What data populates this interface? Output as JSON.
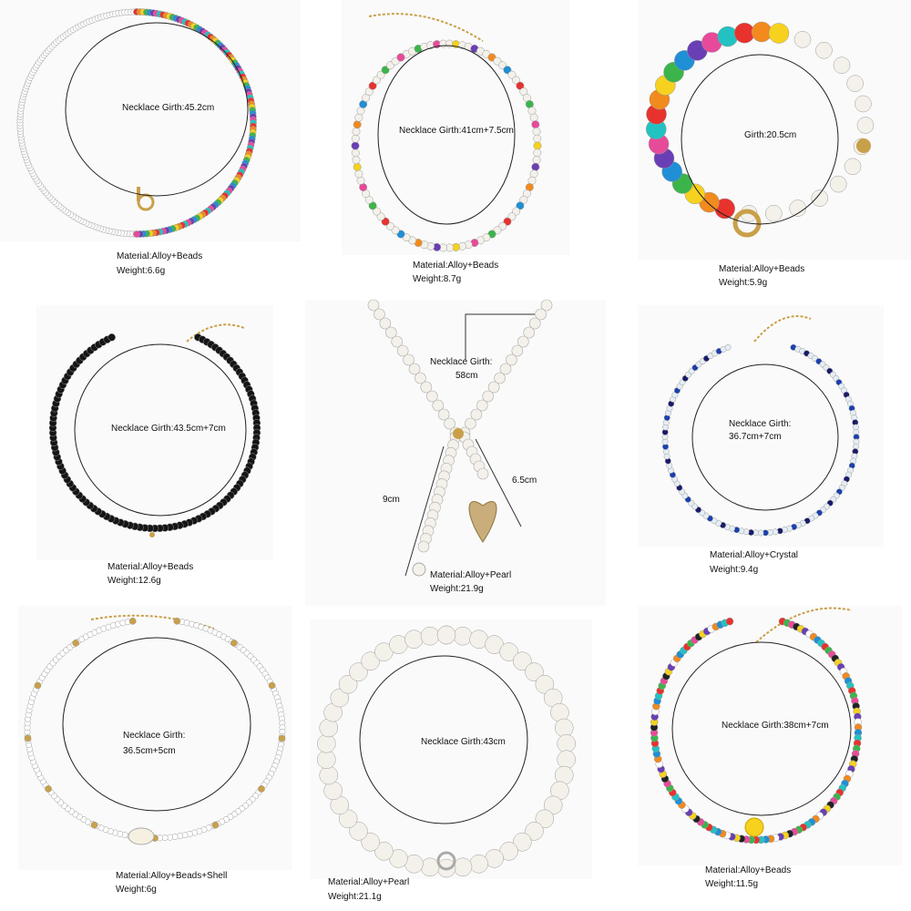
{
  "products": [
    {
      "girth": [
        "Necklace Girth:45.2cm"
      ],
      "material": "Material:Alloy+Beads",
      "weight": "Weight:6.6g"
    },
    {
      "girth": [
        "Necklace Girth:41cm+7.5cm"
      ],
      "material": "Material:Alloy+Beads",
      "weight": "Weight:8.7g"
    },
    {
      "girth": [
        "Girth:20.5cm"
      ],
      "material": "Material:Alloy+Beads",
      "weight": "Weight:5.9g"
    },
    {
      "girth": [
        "Necklace Girth:43.5cm+7cm"
      ],
      "material": "Material:Alloy+Beads",
      "weight": "Weight:12.6g"
    },
    {
      "girth": [
        "Necklace Girth:",
        "58cm"
      ],
      "extra": [
        "9cm",
        "6.5cm"
      ],
      "material": "Material:Alloy+Pearl",
      "weight": "Weight:21.9g"
    },
    {
      "girth": [
        "Necklace Girth:",
        "36.7cm+7cm"
      ],
      "material": "Material:Alloy+Crystal",
      "weight": "Weight:9.4g"
    },
    {
      "girth": [
        "Necklace Girth:",
        "36.5cm+5cm"
      ],
      "material": "Material:Alloy+Beads+Shell",
      "weight": "Weight:6g"
    },
    {
      "girth": [
        "Necklace Girth:43cm"
      ],
      "material": "Material:Alloy+Pearl",
      "weight": "Weight:21.1g"
    },
    {
      "girth": [
        "Necklace Girth:38cm+7cm"
      ],
      "material": "Material:Alloy+Beads",
      "weight": "Weight:11.5g"
    }
  ],
  "colors": {
    "pearl": "#f3f1ea",
    "gold": "#c9a04a",
    "black": "#151515",
    "blue": "#1b3fb0"
  }
}
